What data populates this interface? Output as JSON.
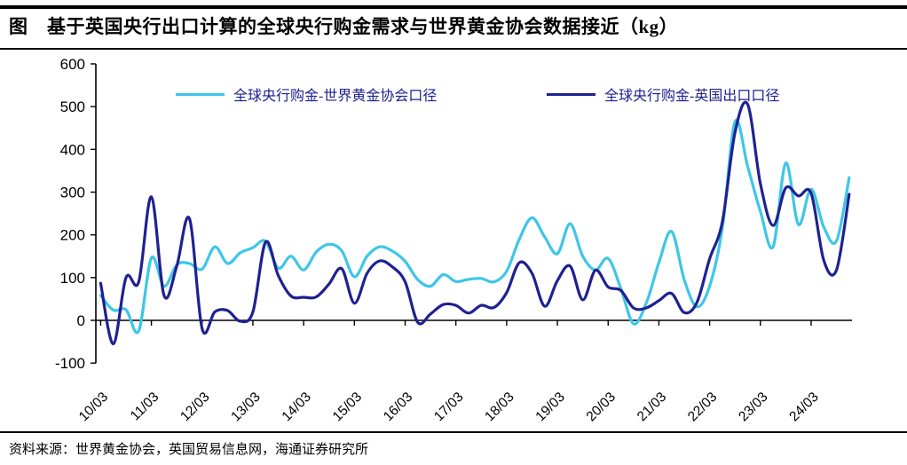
{
  "header": {
    "title": "图　基于英国央行出口计算的全球央行购金需求与世界黄金协会数据接近（kg）"
  },
  "footer": {
    "source": "资料来源：世界黄金协会，英国贸易信息网，海通证券研究所"
  },
  "chart_data": {
    "type": "line",
    "title": "基于英国央行出口计算的全球央行购金需求与世界黄金协会数据接近（kg）",
    "x_unit": "quarterly, 2010Q1 - 2024Q4 (labels year/month)",
    "x_tick_labels": [
      "10/03",
      "11/03",
      "12/03",
      "13/03",
      "14/03",
      "15/03",
      "16/03",
      "17/03",
      "18/03",
      "19/03",
      "20/03",
      "21/03",
      "22/03",
      "23/03",
      "24/03"
    ],
    "y_ticks": [
      600,
      500,
      400,
      300,
      200,
      100,
      0,
      -100
    ],
    "ylim": [
      -100,
      600
    ],
    "grid": false,
    "legend_position": "top-center",
    "axis_color": "#000000",
    "series": [
      {
        "name": "全球央行购金-世界黄金协会口径",
        "color": "#3EC6E8",
        "values": [
          58,
          24,
          25,
          -25,
          146,
          80,
          130,
          133,
          120,
          172,
          133,
          158,
          170,
          185,
          122,
          150,
          118,
          160,
          178,
          163,
          102,
          150,
          172,
          162,
          138,
          95,
          80,
          107,
          91,
          96,
          98,
          90,
          115,
          190,
          240,
          195,
          156,
          226,
          150,
          118,
          145,
          75,
          -8,
          40,
          135,
          208,
          95,
          32,
          80,
          215,
          465,
          360,
          255,
          172,
          368,
          224,
          307,
          218,
          186,
          334
        ]
      },
      {
        "name": "全球央行购金-英国出口口径",
        "color": "#1F2191",
        "values": [
          87,
          -55,
          100,
          90,
          289,
          58,
          127,
          238,
          -20,
          20,
          23,
          -2,
          20,
          183,
          105,
          57,
          54,
          55,
          85,
          121,
          40,
          110,
          139,
          125,
          90,
          -5,
          15,
          37,
          35,
          17,
          35,
          30,
          65,
          135,
          110,
          33,
          93,
          127,
          48,
          117,
          78,
          70,
          29,
          29,
          46,
          63,
          18,
          42,
          144,
          230,
          440,
          505,
          320,
          222,
          310,
          291,
          297,
          140,
          118,
          295
        ]
      }
    ]
  }
}
